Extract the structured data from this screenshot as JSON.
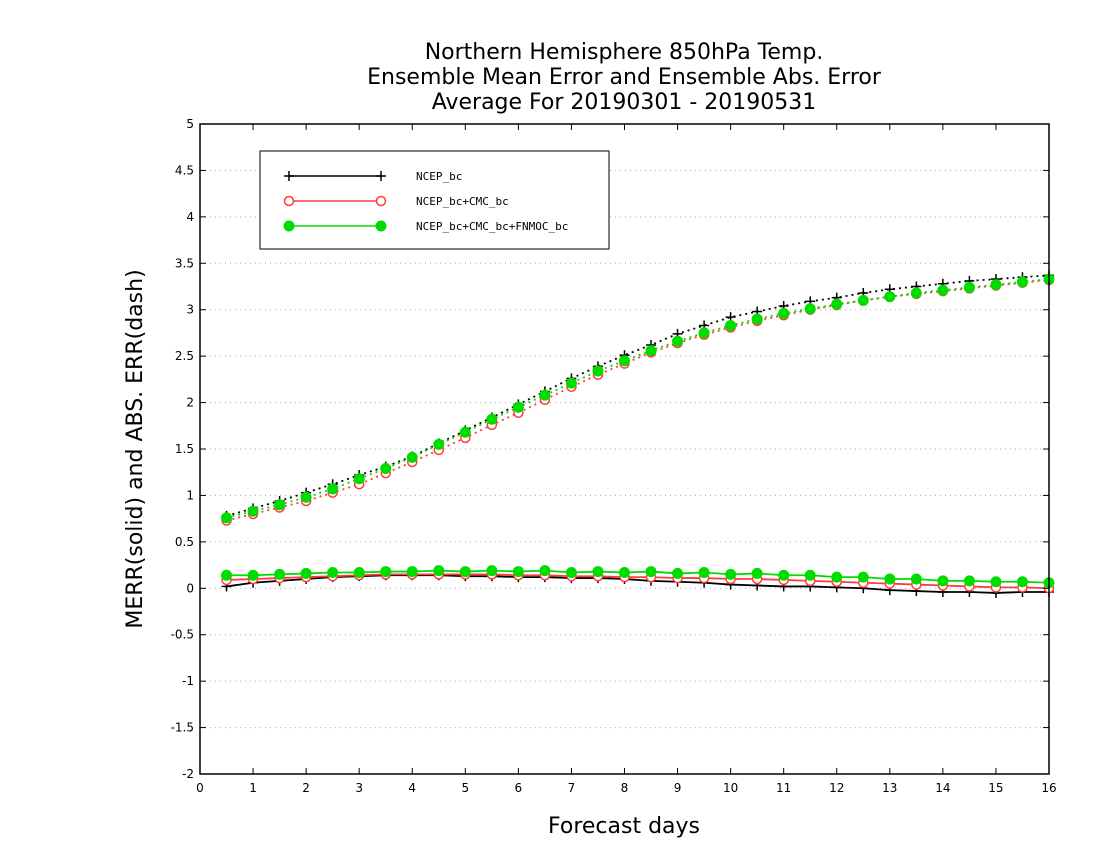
{
  "chart_data": {
    "type": "line",
    "title_lines": [
      "Northern Hemisphere 850hPa Temp.",
      "Ensemble Mean Error and Ensemble Abs. Error",
      "Average For 20190301 - 20190531"
    ],
    "xlabel": "Forecast days",
    "ylabel": "MERR(solid) and ABS. ERR(dash)",
    "xlim": [
      0,
      16
    ],
    "ylim": [
      -2,
      5
    ],
    "xticks": [
      0,
      1,
      2,
      3,
      4,
      5,
      6,
      7,
      8,
      9,
      10,
      11,
      12,
      13,
      14,
      15,
      16
    ],
    "yticks": [
      -2,
      -1.5,
      -1,
      -0.5,
      0,
      0.5,
      1,
      1.5,
      2,
      2.5,
      3,
      3.5,
      4,
      4.5,
      5
    ],
    "ytick_labels": [
      "-2",
      "-1.5",
      "-1",
      "-0.5",
      "0",
      "0.5",
      "1",
      "1.5",
      "2",
      "2.5",
      "3",
      "3.5",
      "4",
      "4.5",
      "5"
    ],
    "grid": "horizontal dotted",
    "legend_position": "top-left",
    "x": [
      0.5,
      1,
      1.5,
      2,
      2.5,
      3,
      3.5,
      4,
      4.5,
      5,
      5.5,
      6,
      6.5,
      7,
      7.5,
      8,
      8.5,
      9,
      9.5,
      10,
      10.5,
      11,
      11.5,
      12,
      12.5,
      13,
      13.5,
      14,
      14.5,
      15,
      15.5,
      16
    ],
    "series": [
      {
        "name": "NCEP_bc",
        "color": "#000000",
        "marker": "plus",
        "merr": [
          0.02,
          0.06,
          0.08,
          0.1,
          0.12,
          0.13,
          0.14,
          0.14,
          0.14,
          0.13,
          0.13,
          0.12,
          0.12,
          0.11,
          0.11,
          0.1,
          0.08,
          0.07,
          0.06,
          0.04,
          0.03,
          0.02,
          0.02,
          0.01,
          0.0,
          -0.02,
          -0.03,
          -0.04,
          -0.04,
          -0.05,
          -0.04,
          -0.04
        ],
        "abs_err": [
          0.78,
          0.86,
          0.94,
          1.03,
          1.12,
          1.22,
          1.31,
          1.42,
          1.56,
          1.7,
          1.84,
          1.98,
          2.12,
          2.26,
          2.39,
          2.51,
          2.62,
          2.74,
          2.83,
          2.92,
          2.98,
          3.04,
          3.09,
          3.13,
          3.18,
          3.22,
          3.25,
          3.28,
          3.31,
          3.33,
          3.35,
          3.37
        ]
      },
      {
        "name": "NCEP_bc+CMC_bc",
        "color": "#ff3c3c",
        "marker": "open-circle",
        "merr": [
          0.09,
          0.1,
          0.11,
          0.12,
          0.13,
          0.14,
          0.15,
          0.15,
          0.15,
          0.15,
          0.15,
          0.14,
          0.14,
          0.13,
          0.13,
          0.12,
          0.12,
          0.11,
          0.11,
          0.1,
          0.1,
          0.09,
          0.08,
          0.07,
          0.06,
          0.05,
          0.04,
          0.03,
          0.02,
          0.01,
          0.01,
          0.0
        ],
        "abs_err": [
          0.73,
          0.8,
          0.87,
          0.94,
          1.03,
          1.12,
          1.24,
          1.36,
          1.49,
          1.62,
          1.76,
          1.89,
          2.03,
          2.17,
          2.3,
          2.42,
          2.54,
          2.64,
          2.73,
          2.81,
          2.88,
          2.94,
          3.0,
          3.05,
          3.1,
          3.14,
          3.17,
          3.2,
          3.23,
          3.26,
          3.29,
          3.32
        ]
      },
      {
        "name": "NCEP_bc+CMC_bc+FNMOC_bc",
        "color": "#00dc00",
        "marker": "filled-circle",
        "merr": [
          0.14,
          0.14,
          0.15,
          0.16,
          0.17,
          0.17,
          0.18,
          0.18,
          0.19,
          0.18,
          0.19,
          0.18,
          0.19,
          0.17,
          0.18,
          0.17,
          0.18,
          0.16,
          0.17,
          0.15,
          0.16,
          0.14,
          0.14,
          0.12,
          0.12,
          0.1,
          0.1,
          0.08,
          0.08,
          0.07,
          0.07,
          0.06
        ],
        "abs_err": [
          0.76,
          0.83,
          0.9,
          0.98,
          1.07,
          1.18,
          1.29,
          1.41,
          1.55,
          1.68,
          1.82,
          1.95,
          2.08,
          2.21,
          2.34,
          2.45,
          2.56,
          2.66,
          2.75,
          2.83,
          2.9,
          2.96,
          3.01,
          3.06,
          3.1,
          3.14,
          3.18,
          3.21,
          3.24,
          3.27,
          3.3,
          3.33
        ]
      }
    ]
  }
}
